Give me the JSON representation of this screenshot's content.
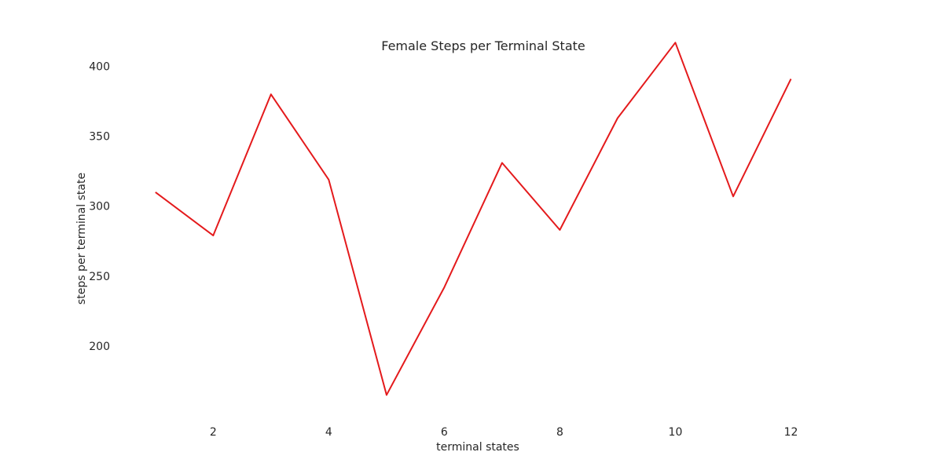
{
  "chart_data": {
    "type": "line",
    "title": "Female Steps per Terminal State",
    "xlabel": "terminal states",
    "ylabel": "steps per terminal state",
    "x": [
      1,
      2,
      3,
      4,
      5,
      6,
      7,
      8,
      9,
      10,
      11,
      12
    ],
    "series": [
      {
        "values": [
          310,
          279,
          380,
          319,
          165,
          242,
          331,
          283,
          363,
          417,
          307,
          391
        ],
        "color": "#e41a1c"
      }
    ],
    "xticks": [
      2,
      4,
      6,
      8,
      10,
      12
    ],
    "yticks": [
      200,
      250,
      300,
      350,
      400
    ],
    "xlim": [
      0.35,
      13.0
    ],
    "ylim": [
      150,
      425
    ],
    "grid": false,
    "legend": "none"
  }
}
